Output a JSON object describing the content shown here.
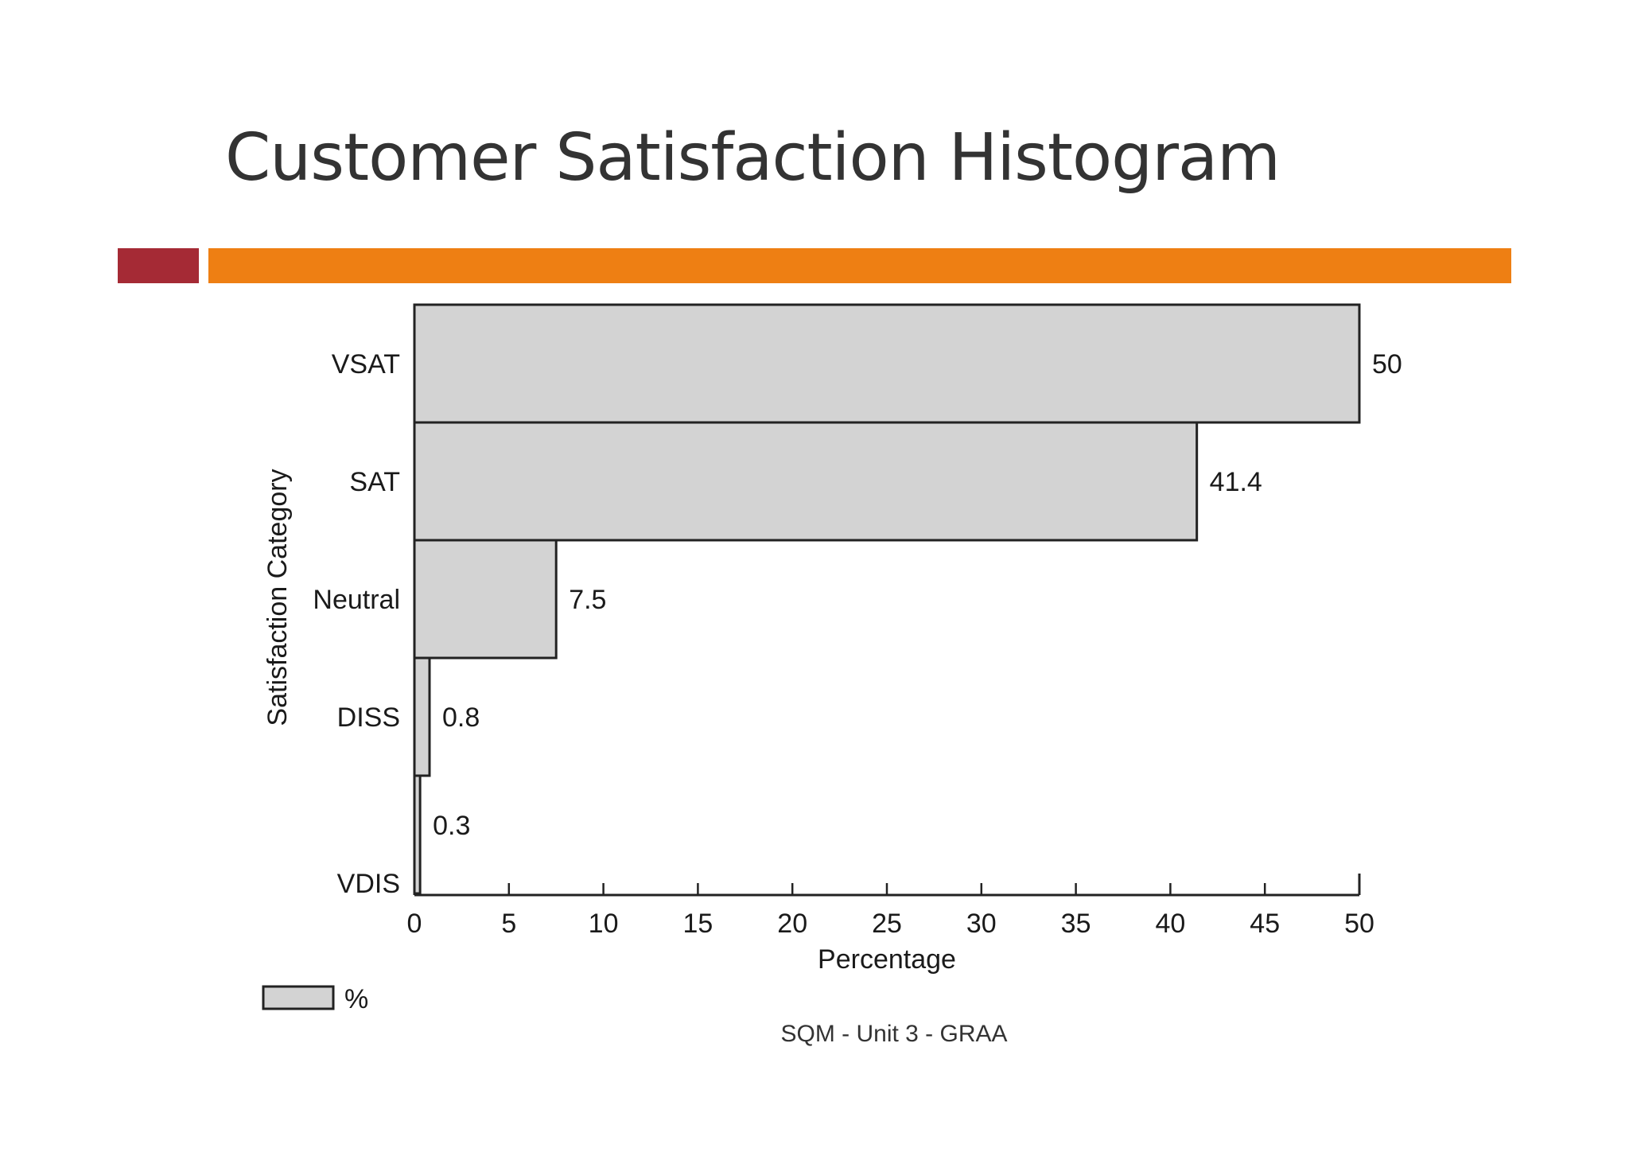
{
  "slide": {
    "title": "Customer Satisfaction Histogram",
    "footer": "SQM - Unit 3 - GRAA"
  },
  "colors": {
    "title": "#333333",
    "accent_red": "#A52A35",
    "accent_orange": "#EE7F13",
    "bar_fill": "#D3D3D3",
    "bar_stroke": "#222222"
  },
  "chart_data": {
    "type": "bar",
    "orientation": "horizontal",
    "categories": [
      "VSAT",
      "SAT",
      "Neutral",
      "DISS",
      "VDIS"
    ],
    "values": [
      50,
      41.4,
      7.5,
      0.8,
      0.3
    ],
    "data_labels": [
      "50",
      "41.4",
      "7.5",
      "0.8",
      "0.3"
    ],
    "xlabel": "Percentage",
    "ylabel": "Satisfaction Category",
    "xlim": [
      0,
      50
    ],
    "xticks": [
      0,
      5,
      10,
      15,
      20,
      25,
      30,
      35,
      40,
      45,
      50
    ],
    "grid": false,
    "legend": {
      "placement": "bottom-left",
      "entries": [
        "%"
      ]
    }
  }
}
